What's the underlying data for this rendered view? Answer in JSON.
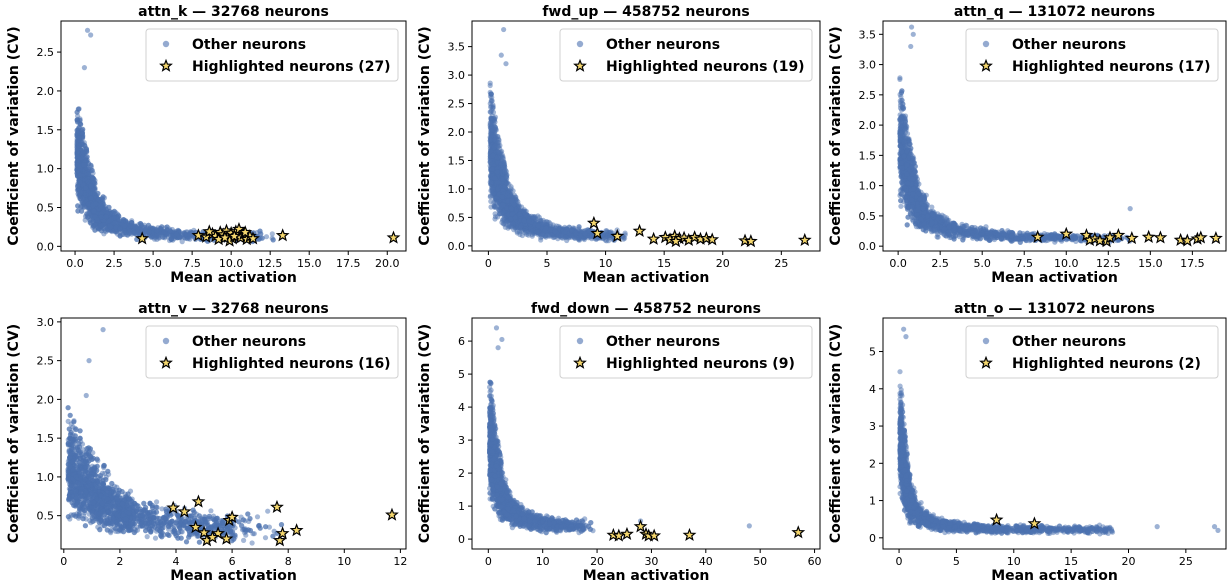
{
  "figure": {
    "xlabel": "Mean activation",
    "ylabel": "Coefficient of variation (CV)",
    "legend_other": "Other neurons"
  },
  "colors": {
    "other": "#4c72b0",
    "highlight_fill": "#f5d76e",
    "highlight_edge": "#000000"
  },
  "chart_data": [
    {
      "type": "scatter",
      "title": "attn_k — 32768 neurons",
      "xlabel": "Mean activation",
      "ylabel": "Coefficient of variation (CV)",
      "xlim": [
        -0.9,
        21.2
      ],
      "ylim": [
        -0.06,
        2.9
      ],
      "xticks": [
        0.0,
        2.5,
        5.0,
        7.5,
        10.0,
        12.5,
        15.0,
        17.5,
        20.0
      ],
      "yticks": [
        0.0,
        0.5,
        1.0,
        1.5,
        2.0,
        2.5
      ],
      "tick_decimals": {
        "x": 1,
        "y": 1
      },
      "legend": [
        "Other neurons",
        "Highlighted neurons (27)"
      ],
      "legend_position": "top-right",
      "other_shape": {
        "x_peak": 0.8,
        "cv_peak": 1.9,
        "x_tail": 12.5,
        "cv_floor": 0.1,
        "outliers": [
          [
            0.8,
            2.78
          ],
          [
            1.0,
            2.72
          ],
          [
            0.6,
            2.3
          ]
        ]
      },
      "highlighted": [
        [
          4.3,
          0.1
        ],
        [
          7.9,
          0.14
        ],
        [
          8.4,
          0.12
        ],
        [
          8.8,
          0.16
        ],
        [
          9.0,
          0.13
        ],
        [
          9.3,
          0.18
        ],
        [
          9.5,
          0.15
        ],
        [
          9.7,
          0.2
        ],
        [
          9.8,
          0.12
        ],
        [
          10.0,
          0.17
        ],
        [
          10.1,
          0.1
        ],
        [
          10.3,
          0.19
        ],
        [
          10.4,
          0.14
        ],
        [
          10.6,
          0.11
        ],
        [
          10.8,
          0.16
        ],
        [
          11.0,
          0.09
        ],
        [
          11.2,
          0.13
        ],
        [
          9.2,
          0.09
        ],
        [
          8.6,
          0.19
        ],
        [
          10.5,
          0.22
        ],
        [
          9.9,
          0.07
        ],
        [
          10.9,
          0.18
        ],
        [
          11.4,
          0.1
        ],
        [
          9.6,
          0.11
        ],
        [
          10.2,
          0.13
        ],
        [
          13.3,
          0.14
        ],
        [
          20.4,
          0.11
        ]
      ]
    },
    {
      "type": "scatter",
      "title": "fwd_up — 458752 neurons",
      "xlabel": "Mean activation",
      "ylabel": "Coefficient of variation (CV)",
      "xlim": [
        -1.4,
        28.3
      ],
      "ylim": [
        -0.09,
        3.95
      ],
      "xticks": [
        0,
        5,
        10,
        15,
        20,
        25
      ],
      "yticks": [
        0.0,
        0.5,
        1.0,
        1.5,
        2.0,
        2.5,
        3.0,
        3.5
      ],
      "tick_decimals": {
        "x": 0,
        "y": 1
      },
      "legend": [
        "Other neurons",
        "Highlighted neurons (19)"
      ],
      "legend_position": "top-right",
      "other_shape": {
        "x_peak": 1.0,
        "cv_peak": 2.9,
        "x_tail": 11.0,
        "cv_floor": 0.12,
        "outliers": [
          [
            1.3,
            3.8
          ],
          [
            1.1,
            3.35
          ],
          [
            1.5,
            3.2
          ]
        ]
      },
      "highlighted": [
        [
          9.0,
          0.4
        ],
        [
          9.3,
          0.22
        ],
        [
          11.0,
          0.17
        ],
        [
          12.9,
          0.26
        ],
        [
          14.1,
          0.12
        ],
        [
          15.1,
          0.15
        ],
        [
          15.5,
          0.11
        ],
        [
          15.9,
          0.17
        ],
        [
          16.3,
          0.13
        ],
        [
          16.7,
          0.14
        ],
        [
          17.1,
          0.1
        ],
        [
          17.6,
          0.15
        ],
        [
          18.1,
          0.12
        ],
        [
          18.6,
          0.13
        ],
        [
          19.1,
          0.11
        ],
        [
          21.9,
          0.09
        ],
        [
          22.4,
          0.08
        ],
        [
          16.0,
          0.08
        ],
        [
          27.0,
          0.1
        ]
      ]
    },
    {
      "type": "scatter",
      "title": "attn_q — 131072 neurons",
      "xlabel": "Mean activation",
      "ylabel": "Coefficient of variation (CV)",
      "xlim": [
        -0.9,
        19.5
      ],
      "ylim": [
        -0.08,
        3.72
      ],
      "xticks": [
        0.0,
        2.5,
        5.0,
        7.5,
        10.0,
        12.5,
        15.0,
        17.5
      ],
      "yticks": [
        0.0,
        0.5,
        1.0,
        1.5,
        2.0,
        2.5,
        3.0,
        3.5
      ],
      "tick_decimals": {
        "x": 1,
        "y": 1
      },
      "legend": [
        "Other neurons",
        "Highlighted neurons (17)"
      ],
      "legend_position": "top-right",
      "other_shape": {
        "x_peak": 0.7,
        "cv_peak": 2.85,
        "x_tail": 14.0,
        "cv_floor": 0.1,
        "outliers": [
          [
            0.8,
            3.62
          ],
          [
            0.9,
            3.5
          ],
          [
            0.75,
            3.3
          ],
          [
            13.8,
            0.62
          ]
        ]
      },
      "highlighted": [
        [
          8.3,
          0.15
        ],
        [
          10.0,
          0.2
        ],
        [
          11.2,
          0.18
        ],
        [
          11.4,
          0.1
        ],
        [
          11.7,
          0.12
        ],
        [
          12.4,
          0.08
        ],
        [
          12.6,
          0.14
        ],
        [
          13.1,
          0.18
        ],
        [
          13.9,
          0.13
        ],
        [
          14.9,
          0.15
        ],
        [
          15.6,
          0.14
        ],
        [
          16.8,
          0.1
        ],
        [
          17.2,
          0.09
        ],
        [
          17.8,
          0.12
        ],
        [
          18.0,
          0.14
        ],
        [
          18.9,
          0.13
        ],
        [
          12.0,
          0.09
        ]
      ]
    },
    {
      "type": "scatter",
      "title": "attn_v — 32768 neurons",
      "xlabel": "Mean activation",
      "ylabel": "Coefficient of variation (CV)",
      "xlim": [
        -0.1,
        12.2
      ],
      "ylim": [
        0.07,
        3.05
      ],
      "xticks": [
        0,
        2,
        4,
        6,
        8,
        10,
        12
      ],
      "yticks": [
        0.5,
        1.0,
        1.5,
        2.0,
        2.5,
        3.0
      ],
      "tick_decimals": {
        "x": 0,
        "y": 1
      },
      "legend": [
        "Other neurons",
        "Highlighted neurons (16)"
      ],
      "legend_position": "top-right",
      "other_shape": {
        "x_peak": 1.0,
        "cv_peak": 1.5,
        "x_tail": 6.5,
        "cv_floor": 0.3,
        "outliers": [
          [
            1.4,
            2.9
          ],
          [
            0.9,
            2.5
          ],
          [
            0.8,
            2.05
          ],
          [
            7.5,
            0.3
          ]
        ]
      },
      "highlighted": [
        [
          3.9,
          0.6
        ],
        [
          4.7,
          0.35
        ],
        [
          4.8,
          0.68
        ],
        [
          5.0,
          0.28
        ],
        [
          5.1,
          0.18
        ],
        [
          5.5,
          0.27
        ],
        [
          5.8,
          0.2
        ],
        [
          5.9,
          0.44
        ],
        [
          6.0,
          0.48
        ],
        [
          7.6,
          0.61
        ],
        [
          7.7,
          0.18
        ],
        [
          7.8,
          0.27
        ],
        [
          8.3,
          0.31
        ],
        [
          11.7,
          0.51
        ],
        [
          4.3,
          0.55
        ],
        [
          5.3,
          0.22
        ]
      ]
    },
    {
      "type": "scatter",
      "title": "fwd_down — 458752 neurons",
      "xlabel": "Mean activation",
      "ylabel": "Coefficient of variation (CV)",
      "xlim": [
        -3.0,
        61.0
      ],
      "ylim": [
        -0.3,
        6.7
      ],
      "xticks": [
        0,
        10,
        20,
        30,
        40,
        50,
        60
      ],
      "yticks": [
        0,
        1,
        2,
        3,
        4,
        5,
        6
      ],
      "tick_decimals": {
        "x": 0,
        "y": 0
      },
      "legend": [
        "Other neurons",
        "Highlighted neurons (9)"
      ],
      "legend_position": "top-right",
      "other_shape": {
        "x_peak": 1.5,
        "cv_peak": 5.0,
        "x_tail": 18.0,
        "cv_floor": 0.3,
        "outliers": [
          [
            1.5,
            6.4
          ],
          [
            2.5,
            6.05
          ],
          [
            1.8,
            5.8
          ],
          [
            48.0,
            0.4
          ],
          [
            28.0,
            0.55
          ]
        ]
      },
      "highlighted": [
        [
          23.0,
          0.12
        ],
        [
          24.0,
          0.1
        ],
        [
          25.5,
          0.15
        ],
        [
          28.0,
          0.38
        ],
        [
          29.0,
          0.15
        ],
        [
          29.5,
          0.1
        ],
        [
          30.5,
          0.1
        ],
        [
          37.0,
          0.12
        ],
        [
          57.0,
          0.2
        ]
      ]
    },
    {
      "type": "scatter",
      "title": "attn_o — 131072 neurons",
      "xlabel": "Mean activation",
      "ylabel": "Coefficient of variation (CV)",
      "xlim": [
        -1.4,
        28.5
      ],
      "ylim": [
        -0.3,
        5.9
      ],
      "xticks": [
        0,
        5,
        10,
        15,
        20,
        25
      ],
      "yticks": [
        0,
        1,
        2,
        3,
        4,
        5
      ],
      "tick_decimals": {
        "x": 0,
        "y": 0
      },
      "legend": [
        "Other neurons",
        "Highlighted neurons (2)"
      ],
      "legend_position": "top-right",
      "other_shape": {
        "x_peak": 0.5,
        "cv_peak": 4.6,
        "x_tail": 20.0,
        "cv_floor": 0.2,
        "outliers": [
          [
            0.4,
            5.6
          ],
          [
            0.6,
            5.4
          ],
          [
            27.5,
            0.3
          ],
          [
            27.8,
            0.2
          ],
          [
            22.5,
            0.3
          ]
        ]
      },
      "highlighted": [
        [
          8.5,
          0.48
        ],
        [
          11.8,
          0.38
        ]
      ]
    }
  ]
}
